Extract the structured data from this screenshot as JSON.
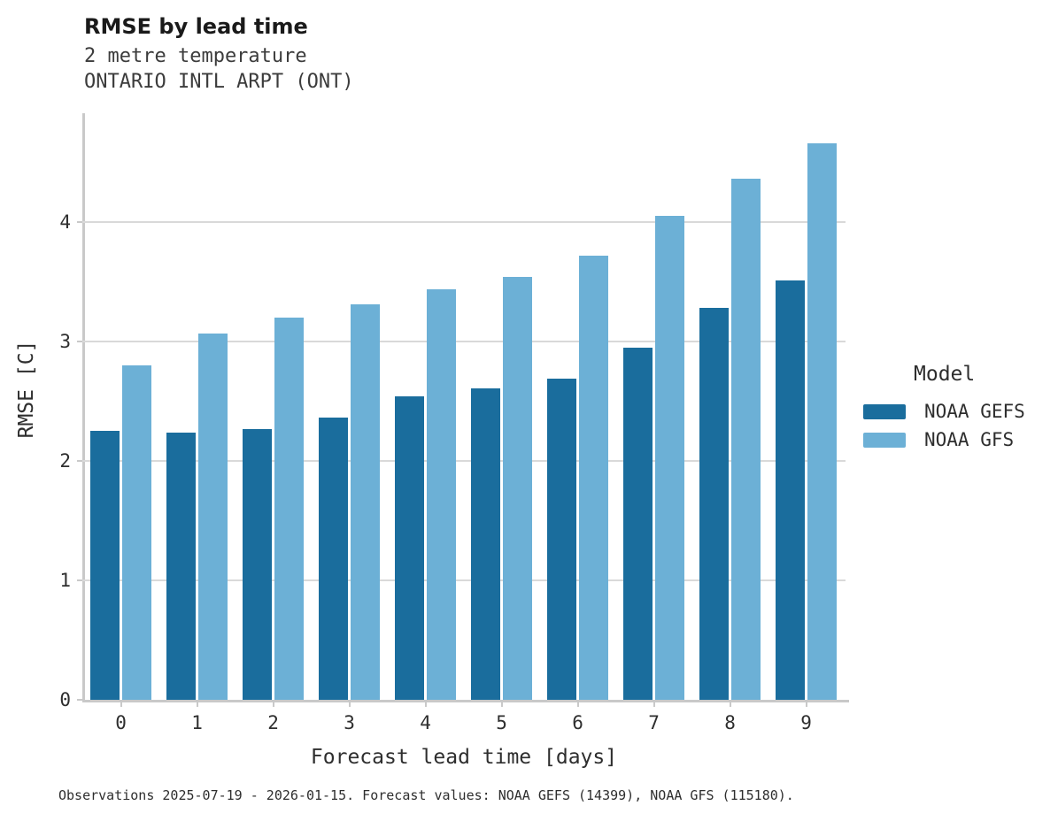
{
  "header": {
    "title": "RMSE by lead time",
    "subtitle_line1": "2 metre temperature",
    "subtitle_line2": "ONTARIO INTL ARPT (ONT)"
  },
  "axes": {
    "xlabel": "Forecast lead time [days]",
    "ylabel": "RMSE [C]"
  },
  "legend": {
    "title": "Model",
    "items": [
      "NOAA GEFS",
      "NOAA GFS"
    ]
  },
  "caption": {
    "text": "Observations 2025-07-19 - 2026-01-15. Forecast values: NOAA GEFS (14399), NOAA GFS (115180)."
  },
  "colors": {
    "gefs_dark_blue": "#1a6d9d",
    "gfs_light_blue": "#6cb0d6",
    "gridline": "#d9d9d9",
    "spine": "#c9c9c9"
  },
  "chart_data": {
    "type": "bar",
    "title": "RMSE by lead time",
    "subtitle": [
      "2 metre temperature",
      "ONTARIO INTL ARPT (ONT)"
    ],
    "xlabel": "Forecast lead time [days]",
    "ylabel": "RMSE [C]",
    "categories": [
      "0",
      "1",
      "2",
      "3",
      "4",
      "5",
      "6",
      "7",
      "8",
      "9"
    ],
    "series": [
      {
        "name": "NOAA GEFS",
        "color": "#1a6d9d",
        "values": [
          2.25,
          2.24,
          2.27,
          2.36,
          2.54,
          2.61,
          2.69,
          2.95,
          3.28,
          3.51
        ]
      },
      {
        "name": "NOAA GFS",
        "color": "#6cb0d6",
        "values": [
          2.8,
          3.07,
          3.2,
          3.31,
          3.44,
          3.54,
          3.72,
          4.05,
          4.36,
          4.66
        ]
      }
    ],
    "ylim": [
      0,
      4.92
    ],
    "yticks": [
      0,
      1,
      2,
      3,
      4
    ],
    "grid": "horizontal",
    "legend_title": "Model",
    "legend_position": "right",
    "caption": "Observations 2025-07-19 - 2026-01-15. Forecast values: NOAA GEFS (14399), NOAA GFS (115180)."
  }
}
